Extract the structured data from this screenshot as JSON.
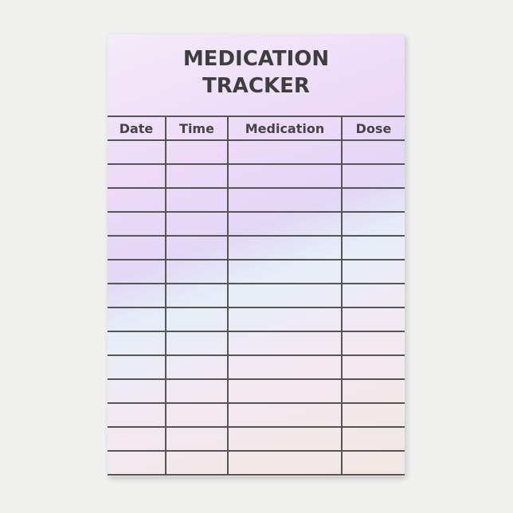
{
  "title_line1": "MEDICATION",
  "title_line2": "TRACKER",
  "columns": [
    "Date",
    "Time",
    "Medication",
    "Dose"
  ],
  "row_count": 14,
  "colors": {
    "lines": "#555555",
    "text": "#3e3e3e",
    "paper": "#ecd9f8"
  }
}
